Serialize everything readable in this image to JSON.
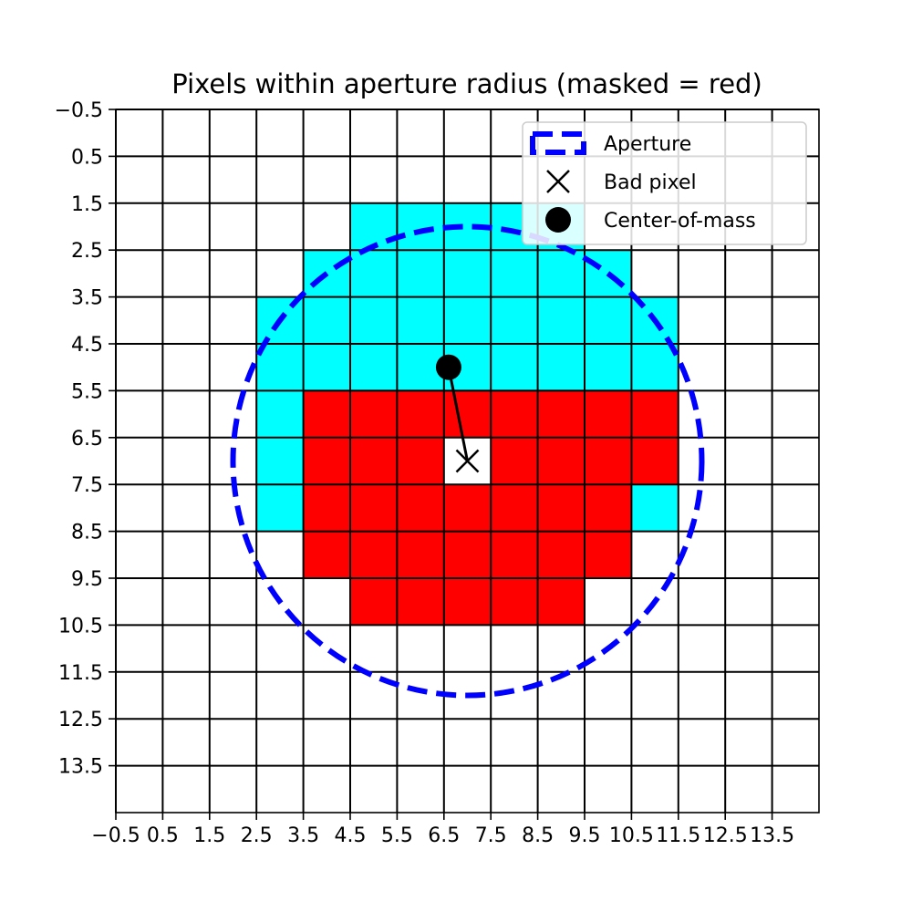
{
  "chart_data": {
    "type": "heatmap",
    "title": "Pixels within aperture radius (masked = red)",
    "xlabel": "",
    "ylabel": "",
    "grid_size": 15,
    "xlim": [
      -0.5,
      14.5
    ],
    "ylim": [
      14.5,
      -0.5
    ],
    "y_inverted": true,
    "grid": true,
    "xticks": [
      -0.5,
      0.5,
      1.5,
      2.5,
      3.5,
      4.5,
      5.5,
      6.5,
      7.5,
      8.5,
      9.5,
      10.5,
      11.5,
      12.5,
      13.5
    ],
    "xtick_labels": [
      "−0.5",
      "0.5",
      "1.5",
      "2.5",
      "3.5",
      "4.5",
      "5.5",
      "6.5",
      "7.5",
      "8.5",
      "9.5",
      "10.5",
      "11.5",
      "12.5",
      "13.5"
    ],
    "yticks": [
      -0.5,
      0.5,
      1.5,
      2.5,
      3.5,
      4.5,
      5.5,
      6.5,
      7.5,
      8.5,
      9.5,
      10.5,
      11.5,
      12.5,
      13.5
    ],
    "ytick_labels": [
      "−0.5",
      "0.5",
      "1.5",
      "2.5",
      "3.5",
      "4.5",
      "5.5",
      "6.5",
      "7.5",
      "8.5",
      "9.5",
      "10.5",
      "11.5",
      "12.5",
      "13.5"
    ],
    "cells_in_aperture": [
      {
        "row": 2,
        "col_start": 5,
        "col_end": 9
      },
      {
        "row": 3,
        "col_start": 4,
        "col_end": 10
      },
      {
        "row": 4,
        "col_start": 3,
        "col_end": 11
      },
      {
        "row": 5,
        "col_start": 3,
        "col_end": 11
      },
      {
        "row": 6,
        "col_start": 3,
        "col_end": 11
      },
      {
        "row": 7,
        "col_start": 3,
        "col_end": 11
      },
      {
        "row": 8,
        "col_start": 3,
        "col_end": 11
      },
      {
        "row": 9,
        "col_start": 4,
        "col_end": 10
      },
      {
        "row": 10,
        "col_start": 5,
        "col_end": 9
      }
    ],
    "cells_masked": [
      {
        "row": 6,
        "col_start": 4,
        "col_end": 11
      },
      {
        "row": 7,
        "col_start": 4,
        "col_end": 11
      },
      {
        "row": 8,
        "col_start": 4,
        "col_end": 10
      },
      {
        "row": 9,
        "col_start": 4,
        "col_end": 10
      },
      {
        "row": 10,
        "col_start": 5,
        "col_end": 9
      }
    ],
    "bad_pixel": {
      "x": 7,
      "y": 7
    },
    "center_of_mass": {
      "x": 6.6,
      "y": 5.0
    },
    "aperture": {
      "cx": 7,
      "cy": 7,
      "r": 5
    },
    "colors": {
      "aperture_pixel": "#00ffff",
      "masked_pixel": "#ff0000",
      "aperture_circle": "#0000ff",
      "grid": "#000000",
      "marker": "#000000"
    },
    "legend": {
      "position": "upper right",
      "entries": [
        {
          "label": "Aperture",
          "marker": "dashed-circle-patch"
        },
        {
          "label": "Bad pixel",
          "marker": "x"
        },
        {
          "label": "Center-of-mass",
          "marker": "filled-circle"
        }
      ]
    }
  }
}
